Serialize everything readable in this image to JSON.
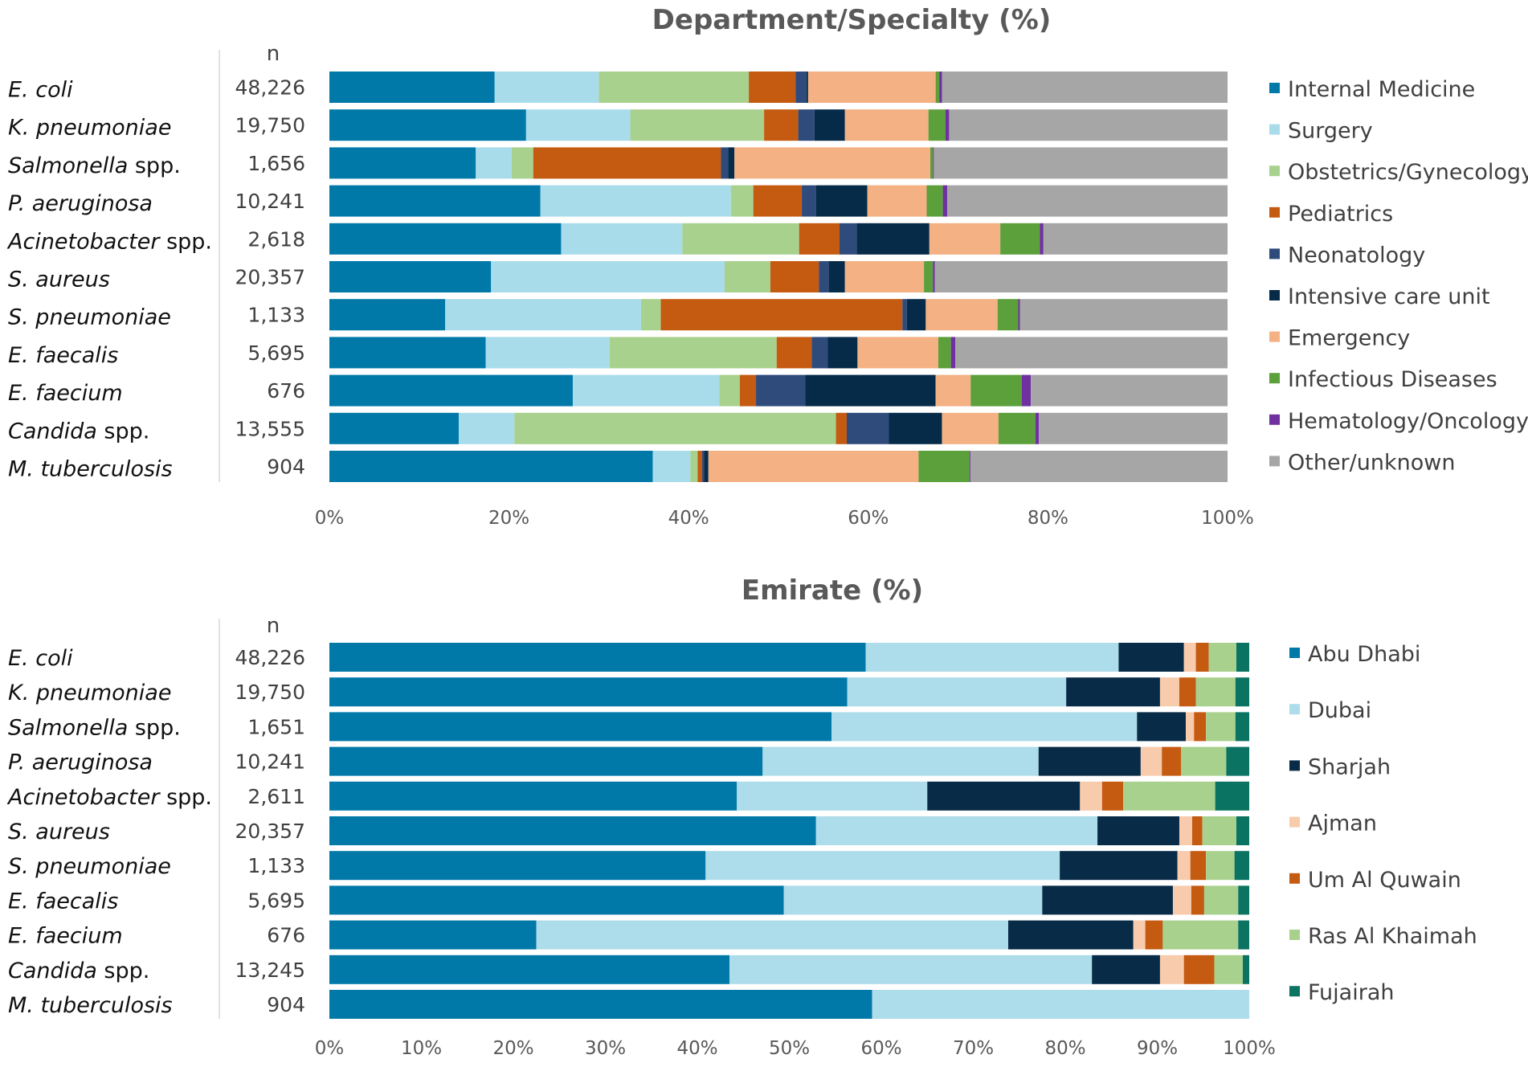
{
  "colors": {
    "internal_medicine": "#0079A8",
    "surgery": "#A9DCEB",
    "obgyn": "#A9D18E",
    "pediatrics": "#C55A11",
    "neonatology": "#2F4B7C",
    "icu": "#062B48",
    "emergency": "#F4B183",
    "infectious": "#5BA03A",
    "hemonc": "#7030A0",
    "other": "#A6A6A6",
    "abu_dhabi": "#0079A8",
    "dubai": "#ADDCEA",
    "sharjah": "#082B48",
    "ajman": "#F8CBAD",
    "um_al_quwain": "#C55A11",
    "ras_al_khaimah": "#A9D18E",
    "fujairah": "#0B7361"
  },
  "chart_data": [
    {
      "type": "bar",
      "orientation": "horizontal",
      "stacked": "percent",
      "title": "Department/Specialty (%)",
      "count_header": "n",
      "xlim": [
        0,
        100
      ],
      "xticks": [
        "0%",
        "20%",
        "40%",
        "60%",
        "80%",
        "100%"
      ],
      "xtick_values": [
        0,
        20,
        40,
        60,
        80,
        100
      ],
      "legend_position": "right",
      "categories": [
        {
          "italic": "E. coli",
          "plain": ""
        },
        {
          "italic": "K. pneumoniae",
          "plain": ""
        },
        {
          "italic": "Salmonella",
          "plain": " spp."
        },
        {
          "italic": "P. aeruginosa",
          "plain": ""
        },
        {
          "italic": "Acinetobacter",
          "plain": " spp."
        },
        {
          "italic": "S. aureus",
          "plain": ""
        },
        {
          "italic": "S. pneumoniae",
          "plain": ""
        },
        {
          "italic": "E. faecalis",
          "plain": ""
        },
        {
          "italic": "E. faecium",
          "plain": ""
        },
        {
          "italic": "Candida",
          "plain": " spp."
        },
        {
          "italic": "M. tuberculosis",
          "plain": ""
        }
      ],
      "counts": [
        "48,226",
        "19,750",
        "1,656",
        "10,241",
        "2,618",
        "20,357",
        "1,133",
        "5,695",
        "676",
        "13,555",
        "904"
      ],
      "series": [
        {
          "name": "Internal Medicine",
          "color_key": "internal_medicine",
          "values": [
            18.4,
            21.9,
            16.3,
            23.5,
            25.8,
            18.0,
            12.9,
            17.4,
            27.1,
            14.4,
            36.0
          ]
        },
        {
          "name": "Surgery",
          "color_key": "surgery",
          "values": [
            11.6,
            11.6,
            4.0,
            21.2,
            13.5,
            26.0,
            21.8,
            13.8,
            16.3,
            6.2,
            4.2
          ]
        },
        {
          "name": "Obstetrics/Gynecology",
          "color_key": "obgyn",
          "values": [
            16.7,
            14.9,
            2.4,
            2.5,
            13.0,
            5.1,
            2.2,
            18.6,
            2.3,
            35.8,
            0.8
          ]
        },
        {
          "name": "Pediatrics",
          "color_key": "pediatrics",
          "values": [
            5.2,
            3.8,
            20.9,
            5.4,
            4.5,
            5.4,
            26.9,
            3.9,
            1.8,
            1.2,
            0.5
          ]
        },
        {
          "name": "Neonatology",
          "color_key": "neonatology",
          "values": [
            1.2,
            1.8,
            0.8,
            1.6,
            1.9,
            1.1,
            0.5,
            1.8,
            5.5,
            4.7,
            0.2
          ]
        },
        {
          "name": "Intensive care unit",
          "color_key": "icu",
          "values": [
            0.2,
            3.4,
            0.7,
            5.7,
            8.1,
            1.8,
            2.1,
            3.3,
            14.5,
            5.9,
            0.5
          ]
        },
        {
          "name": "Emergency",
          "color_key": "emergency",
          "values": [
            14.2,
            9.3,
            21.8,
            6.6,
            7.9,
            8.8,
            8.0,
            9.0,
            3.9,
            6.3,
            23.4
          ]
        },
        {
          "name": "Infectious Diseases",
          "color_key": "infectious",
          "values": [
            0.4,
            1.9,
            0.3,
            1.8,
            4.4,
            1.0,
            2.3,
            1.4,
            5.7,
            4.1,
            5.7
          ]
        },
        {
          "name": "Hematology/Oncology",
          "color_key": "hemonc",
          "values": [
            0.3,
            0.4,
            0.1,
            0.5,
            0.4,
            0.2,
            0.2,
            0.5,
            1.0,
            0.4,
            0.1
          ]
        },
        {
          "name": "Other/unknown",
          "color_key": "other",
          "values": [
            31.8,
            31.0,
            32.7,
            31.2,
            20.5,
            32.6,
            23.1,
            30.3,
            21.9,
            21.0,
            28.6
          ]
        }
      ]
    },
    {
      "type": "bar",
      "orientation": "horizontal",
      "stacked": "percent",
      "title": "Emirate (%)",
      "count_header": "n",
      "xlim": [
        0,
        100
      ],
      "xticks": [
        "0%",
        "10%",
        "20%",
        "30%",
        "40%",
        "50%",
        "60%",
        "70%",
        "80%",
        "90%",
        "100%"
      ],
      "xtick_values": [
        0,
        10,
        20,
        30,
        40,
        50,
        60,
        70,
        80,
        90,
        100
      ],
      "legend_position": "right",
      "categories": [
        {
          "italic": "E. coli",
          "plain": ""
        },
        {
          "italic": "K. pneumoniae",
          "plain": ""
        },
        {
          "italic": "Salmonella",
          "plain": " spp."
        },
        {
          "italic": "P. aeruginosa",
          "plain": ""
        },
        {
          "italic": "Acinetobacter",
          "plain": " spp."
        },
        {
          "italic": "S. aureus",
          "plain": ""
        },
        {
          "italic": "S. pneumoniae",
          "plain": ""
        },
        {
          "italic": "E. faecalis",
          "plain": ""
        },
        {
          "italic": "E. faecium",
          "plain": ""
        },
        {
          "italic": "Candida",
          "plain": " spp."
        },
        {
          "italic": "M. tuberculosis",
          "plain": ""
        }
      ],
      "counts": [
        "48,226",
        "19,750",
        "1,651",
        "10,241",
        "2,611",
        "20,357",
        "1,133",
        "5,695",
        "676",
        "13,245",
        "904"
      ],
      "series": [
        {
          "name": "Abu Dhabi",
          "color_key": "abu_dhabi",
          "values": [
            58.3,
            56.3,
            54.6,
            47.1,
            44.3,
            52.9,
            40.9,
            49.4,
            22.5,
            43.5,
            59.0
          ]
        },
        {
          "name": "Dubai",
          "color_key": "dubai",
          "values": [
            27.5,
            23.8,
            33.2,
            30.0,
            20.7,
            30.6,
            38.5,
            28.1,
            51.3,
            39.4,
            41.0
          ]
        },
        {
          "name": "Sharjah",
          "color_key": "sharjah",
          "values": [
            7.1,
            10.2,
            5.3,
            11.1,
            16.6,
            8.9,
            12.8,
            14.2,
            13.6,
            7.4,
            0.0
          ]
        },
        {
          "name": "Ajman",
          "color_key": "ajman",
          "values": [
            1.3,
            2.1,
            0.9,
            2.3,
            2.4,
            1.4,
            1.4,
            2.0,
            1.3,
            2.6,
            0.0
          ]
        },
        {
          "name": "Um Al Quwain",
          "color_key": "um_al_quwain",
          "values": [
            1.4,
            1.8,
            1.3,
            2.1,
            2.3,
            1.1,
            1.7,
            1.4,
            1.9,
            3.3,
            0.0
          ]
        },
        {
          "name": "Ras Al Khaimah",
          "color_key": "ras_al_khaimah",
          "values": [
            3.0,
            4.3,
            3.2,
            4.9,
            10.0,
            3.7,
            3.1,
            3.7,
            8.2,
            3.1,
            0.0
          ]
        },
        {
          "name": "Fujairah",
          "color_key": "fujairah",
          "values": [
            1.4,
            1.5,
            1.5,
            2.5,
            3.7,
            1.4,
            1.6,
            1.2,
            1.2,
            0.7,
            0.0
          ]
        }
      ]
    }
  ]
}
